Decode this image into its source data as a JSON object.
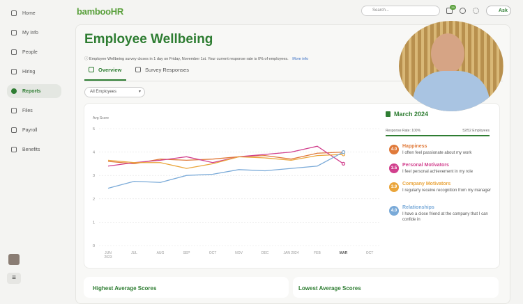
{
  "sidebar": {
    "items": [
      "Home",
      "My Info",
      "People",
      "Hiring",
      "Reports",
      "Files",
      "Payroll",
      "Benefits"
    ],
    "active": 4
  },
  "header": {
    "logo": "bambooHR",
    "search_placeholder": "Search...",
    "badge": "29",
    "ask": "Ask"
  },
  "page": {
    "title": "Employee Wellbeing",
    "notice": "Employee Wellbeing survey closes in 1 day on Friday, November 1st. Your current response rate is 0% of employees.",
    "more_info": "More info",
    "tabs": [
      "Overview",
      "Survey Responses"
    ],
    "active_tab": 0,
    "filter": "All Employees"
  },
  "chart_data": {
    "type": "line",
    "y_label": "Avg Score",
    "categories": [
      "JUN 2023",
      "JUL",
      "AUG",
      "SEP",
      "OCT",
      "NOV",
      "DEC",
      "JAN 2024",
      "FEB",
      "MAR",
      "OCT"
    ],
    "highlight": 9,
    "series": [
      {
        "name": "Happiness",
        "color": "#e07a3a",
        "values": [
          3.6,
          3.5,
          3.7,
          3.65,
          3.7,
          3.8,
          3.85,
          3.7,
          3.95,
          4.0,
          null
        ]
      },
      {
        "name": "Personal Motivators",
        "color": "#d13f8d",
        "values": [
          3.4,
          3.55,
          3.65,
          3.8,
          3.55,
          3.8,
          3.9,
          4.0,
          4.25,
          3.5,
          null
        ]
      },
      {
        "name": "Company Motivators",
        "color": "#eaa53b",
        "values": [
          3.65,
          3.55,
          3.55,
          3.3,
          3.5,
          3.8,
          3.75,
          3.65,
          3.85,
          3.9,
          null
        ]
      },
      {
        "name": "Relationships",
        "color": "#7aaad8",
        "values": [
          2.45,
          2.75,
          2.7,
          3.0,
          3.05,
          3.25,
          3.2,
          3.3,
          3.4,
          4.0,
          null
        ]
      }
    ],
    "ylim": [
      0,
      5
    ],
    "yticks": [
      0,
      1,
      2,
      3,
      4,
      5
    ],
    "grid": true
  },
  "summary": {
    "title": "March 2024",
    "response_rate": "Response Rate: 100%",
    "employees": "52/52 Employees",
    "items": [
      {
        "score": "4.0",
        "name": "Happiness",
        "text": "I often feel passionate about my work"
      },
      {
        "score": "3.5",
        "name": "Personal Motivators",
        "text": "I feel personal achievement in my role"
      },
      {
        "score": "3.9",
        "name": "Company Motivators",
        "text": "I regularly receive recognition from my manager"
      },
      {
        "score": "4.0",
        "name": "Relationships",
        "text": "I have a close friend at the company that I can confide in"
      }
    ]
  },
  "sections": [
    "Highest Average Scores",
    "Lowest Average Scores"
  ]
}
